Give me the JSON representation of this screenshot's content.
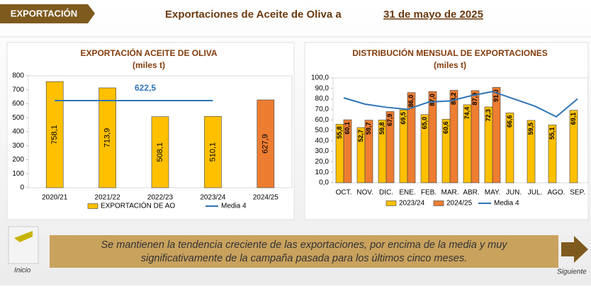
{
  "header": {
    "tab": "EXPORTACIÓN",
    "title": "Exportaciones de Aceite de Oliva a",
    "date": "31 de mayo de 2025"
  },
  "chart_data": [
    {
      "type": "bar",
      "title": "EXPORTACIÓN ACEITE DE OLIVA",
      "subtitle": "(miles t)",
      "categories": [
        "2020/21",
        "2021/22",
        "2022/23",
        "2023/24",
        "2024/25"
      ],
      "series": [
        {
          "name": "EXPORTACIÓN DE AO",
          "type": "bar",
          "color": "#FFC000",
          "colors": [
            "#FFC000",
            "#FFC000",
            "#FFC000",
            "#FFC000",
            "#ED7D31"
          ],
          "values": [
            758.1,
            713.9,
            508.1,
            510.1,
            627.9
          ],
          "value_labels": [
            "758,1",
            "713,9",
            "508,1",
            "510,1",
            "627,9"
          ]
        },
        {
          "name": "Media 4",
          "type": "line",
          "color": "#2E75B6",
          "values": [
            622.5,
            622.5,
            622.5,
            622.5,
            null
          ]
        }
      ],
      "annotation": {
        "text": "622,5",
        "value": 622.5
      },
      "ylim": [
        0,
        800
      ],
      "yticks": [
        0,
        100,
        200,
        300,
        400,
        500,
        600,
        700,
        800
      ],
      "grid": false
    },
    {
      "type": "bar",
      "title": "DISTRIBUCIÓN MENSUAL DE EXPORTACIONES",
      "subtitle": "(miles t)",
      "categories": [
        "OCT.",
        "NOV.",
        "DIC.",
        "ENE.",
        "FEB.",
        "MAR.",
        "ABR.",
        "MAY.",
        "JUN.",
        "JUL.",
        "AGO.",
        "SEP."
      ],
      "series": [
        {
          "name": "2023/24",
          "type": "bar",
          "color": "#FFC000",
          "values": [
            55.8,
            52.7,
            59.8,
            69.5,
            65.0,
            60.6,
            74.4,
            72.3,
            66.6,
            59.5,
            55.1,
            69.1
          ],
          "value_labels": [
            "55,8",
            "52,7",
            "59,8",
            "69,5",
            "65,0",
            "60,6",
            "74,4",
            "72,3",
            "66,6",
            "59,5",
            "55,1",
            "69,1"
          ]
        },
        {
          "name": "2024/25",
          "type": "bar",
          "color": "#ED7D31",
          "values": [
            60.1,
            59.7,
            67.9,
            86.0,
            87.0,
            88.2,
            87.9,
            91.0,
            null,
            null,
            null,
            null
          ],
          "value_labels": [
            "60,1",
            "59,7",
            "67,9",
            "86,0",
            "87,0",
            "88,2",
            "87,9",
            "91,0",
            null,
            null,
            null,
            null
          ]
        },
        {
          "name": "Media 4",
          "type": "line",
          "color": "#2E75B6",
          "values": [
            81,
            75,
            72,
            70,
            77,
            78,
            83,
            87,
            80,
            73,
            63,
            80
          ]
        }
      ],
      "ylim": [
        0,
        100
      ],
      "yticks": [
        {
          "value": 0,
          "label": "0,0"
        },
        {
          "value": 10,
          "label": "10,0"
        },
        {
          "value": 20,
          "label": "20,0"
        },
        {
          "value": 30,
          "label": "30,0"
        },
        {
          "value": 40,
          "label": "40,0"
        },
        {
          "value": 50,
          "label": "50,0"
        },
        {
          "value": 60,
          "label": "60,0"
        },
        {
          "value": 70,
          "label": "70,0"
        },
        {
          "value": 80,
          "label": "80,0"
        },
        {
          "value": 90,
          "label": "90,0"
        },
        {
          "value": 100,
          "label": "100,0"
        }
      ],
      "grid": false
    }
  ],
  "message": [
    "Se mantienen la tendencia creciente de las exportaciones, por encima de la media y muy",
    "significativamente de la campaña pasada para los últimos cinco meses."
  ],
  "nav": {
    "back": "Inicio",
    "next": "Siguiente"
  }
}
